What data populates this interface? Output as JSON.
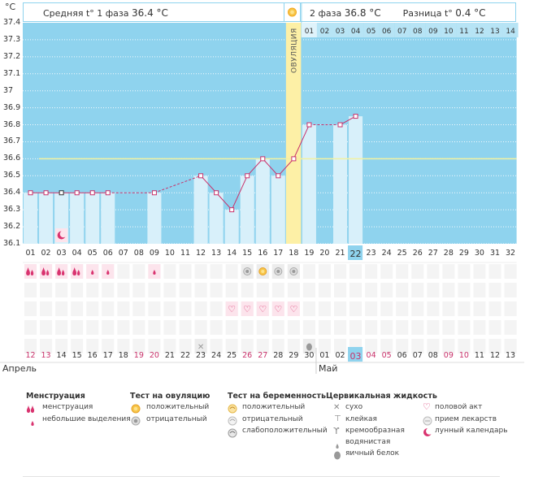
{
  "unit_label": "°C",
  "phase1": {
    "label": "Средняя t° 1 фаза",
    "value": "36.4 °C"
  },
  "phase2": {
    "label": "2 фаза",
    "value": "36.8 °C"
  },
  "diff": {
    "label": "Разница t°",
    "value": "0.4 °C"
  },
  "ovulation_label": "ОВУЛЯЦИЯ",
  "y_ticks": [
    "37.4",
    "37.3",
    "37.2",
    "37.1",
    "37",
    "36.9",
    "36.8",
    "36.7",
    "36.6",
    "36.5",
    "36.4",
    "36.3",
    "36.2",
    "36.1"
  ],
  "cycle_days": [
    "01",
    "02",
    "03",
    "04",
    "05",
    "06",
    "07",
    "08",
    "09",
    "10",
    "11",
    "12",
    "13",
    "14",
    "15",
    "16",
    "17",
    "18",
    "19",
    "20",
    "21",
    "22",
    "23",
    "24",
    "25",
    "26",
    "27",
    "28",
    "29",
    "30",
    "31",
    "32"
  ],
  "phase2_days": [
    "01",
    "02",
    "03",
    "04",
    "05",
    "06",
    "07",
    "08",
    "09",
    "10",
    "11",
    "12",
    "13",
    "14"
  ],
  "dates": [
    "12",
    "13",
    "14",
    "15",
    "16",
    "17",
    "18",
    "19",
    "20",
    "21",
    "22",
    "23",
    "24",
    "25",
    "26",
    "27",
    "28",
    "29",
    "30",
    "01",
    "02",
    "03",
    "04",
    "05",
    "06",
    "07",
    "08",
    "09",
    "10",
    "11",
    "12",
    "13"
  ],
  "dates_red": [
    0,
    1,
    7,
    8,
    14,
    15,
    21,
    22,
    23,
    27,
    28
  ],
  "today_index": 21,
  "month_april": "Апрель",
  "month_may": "Май",
  "chart_data": {
    "type": "line",
    "ylabel": "°C",
    "ylim": [
      36.1,
      37.4
    ],
    "x": [
      1,
      2,
      3,
      4,
      5,
      6,
      9,
      12,
      13,
      14,
      15,
      16,
      17,
      18,
      19,
      21,
      22
    ],
    "y": [
      36.4,
      36.4,
      36.4,
      36.4,
      36.4,
      36.4,
      36.4,
      36.5,
      36.4,
      36.3,
      36.5,
      36.6,
      36.5,
      36.6,
      36.8,
      36.8,
      36.85
    ],
    "coverline": 36.6,
    "ovulation_day": 18
  },
  "legend": {
    "menstruation": {
      "title": "Менструация",
      "items": [
        "менструация",
        "небольшие выделения"
      ]
    },
    "ovulation_test": {
      "title": "Тест на овуляцию",
      "items": [
        "положительный",
        "отрицательный"
      ]
    },
    "pregnancy_test": {
      "title": "Тест на беременность",
      "items": [
        "положительный",
        "отрицательный",
        "слабоположительный"
      ]
    },
    "cervical": {
      "title": "Цервикальная жидкость",
      "items": [
        "сухо",
        "клейкая",
        "кремообразная",
        "водянистая",
        "яичный белок"
      ]
    },
    "other": {
      "items": [
        "половой акт",
        "прием лекарств",
        "лунный календарь"
      ]
    }
  }
}
